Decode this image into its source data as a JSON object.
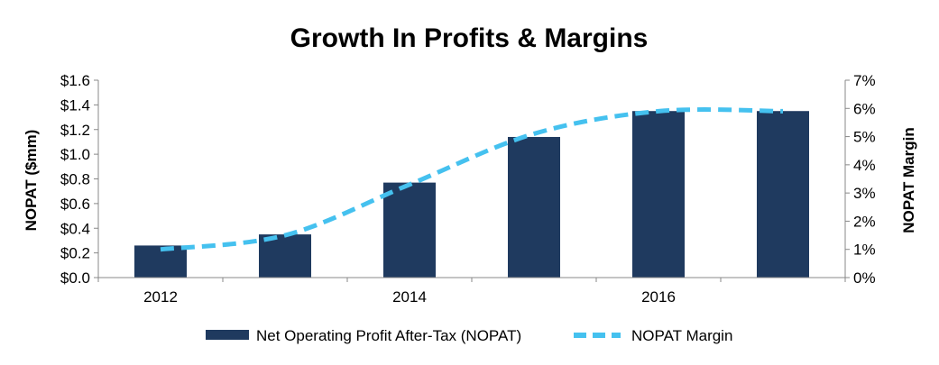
{
  "chart_data": {
    "type": "bar",
    "title": "Growth In Profits & Margins",
    "x": [
      2012,
      2013,
      2014,
      2015,
      2016,
      2017
    ],
    "x_tick_labels": [
      "2012",
      "2014",
      "2016"
    ],
    "x_tick_values": [
      2012,
      2014,
      2016
    ],
    "ylabel": "NOPAT ($mm)",
    "ylim": [
      0,
      1.6
    ],
    "y_ticks": [
      "$0.0",
      "$0.2",
      "$0.4",
      "$0.6",
      "$0.8",
      "$1.0",
      "$1.2",
      "$1.4",
      "$1.6"
    ],
    "y2label": "NOPAT Margin",
    "y2lim": [
      0,
      7
    ],
    "y2_ticks": [
      "0%",
      "1%",
      "2%",
      "3%",
      "4%",
      "5%",
      "6%",
      "7%"
    ],
    "grid": false,
    "legend_position": "bottom",
    "series": [
      {
        "name": "Net Operating Profit After-Tax (NOPAT)",
        "type": "bar",
        "axis": "left",
        "color": "#1f3a5f",
        "values": [
          0.26,
          0.35,
          0.77,
          1.14,
          1.35,
          1.35
        ]
      },
      {
        "name": "NOPAT Margin",
        "type": "line",
        "axis": "right",
        "style": "dashed",
        "color": "#45c1ef",
        "values": [
          1.0,
          1.5,
          3.3,
          5.1,
          5.9,
          5.9
        ]
      }
    ]
  }
}
